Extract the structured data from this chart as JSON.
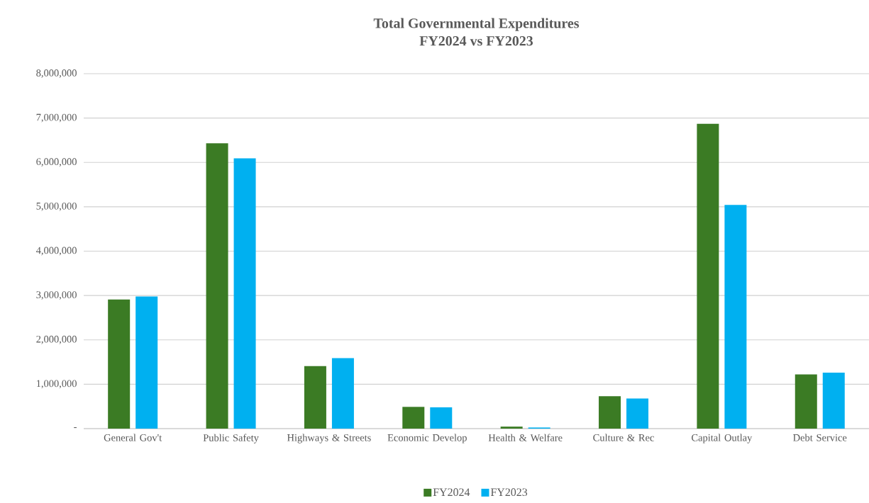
{
  "chart_data": {
    "type": "bar",
    "title": "Total Governmental Expenditures",
    "subtitle": "FY2024 vs FY2023",
    "categories": [
      "General Gov't",
      "Public Safety",
      "Highways & Streets",
      "Economic Develop",
      "Health & Welfare",
      "Culture & Rec",
      "Capital Outlay",
      "Debt Service"
    ],
    "series": [
      {
        "name": "FY2024",
        "color": "#3b7b24",
        "values": [
          2910000,
          6430000,
          1410000,
          490000,
          45000,
          730000,
          6870000,
          1220000
        ]
      },
      {
        "name": "FY2023",
        "color": "#00b0f0",
        "values": [
          2980000,
          6090000,
          1590000,
          480000,
          25000,
          680000,
          5040000,
          1260000
        ]
      }
    ],
    "ylim": [
      0,
      8000000
    ],
    "yticks": [
      {
        "value": 0,
        "label": "-"
      },
      {
        "value": 1000000,
        "label": "1,000,000"
      },
      {
        "value": 2000000,
        "label": "2,000,000"
      },
      {
        "value": 3000000,
        "label": "3,000,000"
      },
      {
        "value": 4000000,
        "label": "4,000,000"
      },
      {
        "value": 5000000,
        "label": "5,000,000"
      },
      {
        "value": 6000000,
        "label": "6,000,000"
      },
      {
        "value": 7000000,
        "label": "7,000,000"
      },
      {
        "value": 8000000,
        "label": "8,000,000"
      }
    ],
    "grid": "y",
    "legend": "bottom"
  }
}
